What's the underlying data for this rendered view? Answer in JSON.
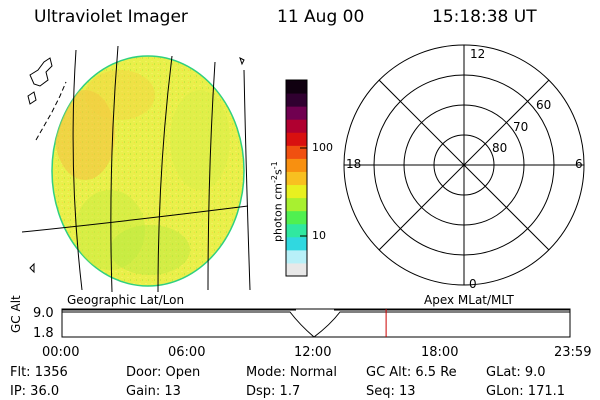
{
  "header": {
    "title": "Ultraviolet Imager",
    "date": "11 Aug 00",
    "time": "15:18:38 UT"
  },
  "colorbar": {
    "unit_label": "photon cm",
    "unit_exp1": "-2",
    "unit_mid": "s",
    "unit_exp2": "-1",
    "tick_high": "100",
    "tick_low": "10",
    "colors": [
      "#e8e8e8",
      "#b8f0f8",
      "#30d8e0",
      "#30e8a0",
      "#50f050",
      "#a8f030",
      "#e8f020",
      "#f8c020",
      "#f89010",
      "#f05010",
      "#d81010",
      "#b00030",
      "#700050",
      "#300030",
      "#100010"
    ]
  },
  "geo_panel": {
    "label": "Geographic Lat/Lon",
    "fill": "#e8ef4a"
  },
  "polar_panel": {
    "label": "Apex MLat/MLT",
    "mlt_top": "12",
    "mlt_left": "18",
    "mlt_right": "6",
    "mlt_bottom": "0",
    "lat_60": "60",
    "lat_70": "70",
    "lat_80": "80"
  },
  "altitude_plot": {
    "ylabel": "GC Alt",
    "y_top": "9.0",
    "y_bottom": "1.8",
    "x_ticks": [
      "00:00",
      "06:00",
      "12:00",
      "18:00",
      "23:59"
    ],
    "current_time_fraction": 0.638,
    "marker_color": "#cc0000"
  },
  "status": {
    "flt": "Flt: 1356",
    "ip": "IP: 36.0",
    "door": "Door: Open",
    "gain": "Gain: 13",
    "mode": "Mode: Normal",
    "dsp": "Dsp:    1.7",
    "gc_alt": "GC Alt: 6.5 Re",
    "seq": "Seq: 13",
    "glat": "GLat:    9.0",
    "glon": "GLon: 171.1"
  }
}
